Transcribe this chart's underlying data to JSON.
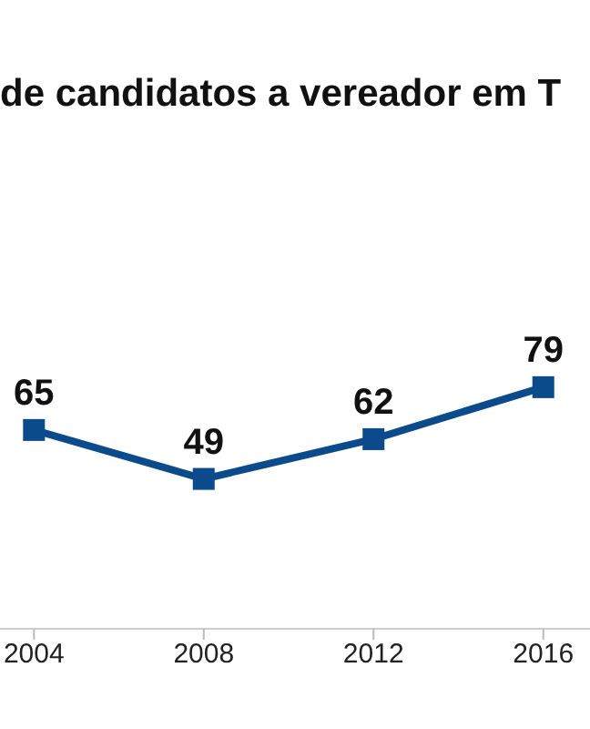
{
  "chart_data": {
    "type": "line",
    "title": "de candidatos a vereador em T",
    "x": [
      2004,
      2008,
      2012,
      2016
    ],
    "series": [
      {
        "color": "#0b4a8b",
        "values": [
          65,
          49,
          62,
          79
        ]
      }
    ],
    "xlim": [
      2003.2,
      2017.1
    ],
    "xticks": [
      2004,
      2008,
      2012,
      2016
    ],
    "tick_labels": "x",
    "grid": false,
    "marker": "square",
    "line_style": "solid",
    "data_labels": true
  }
}
